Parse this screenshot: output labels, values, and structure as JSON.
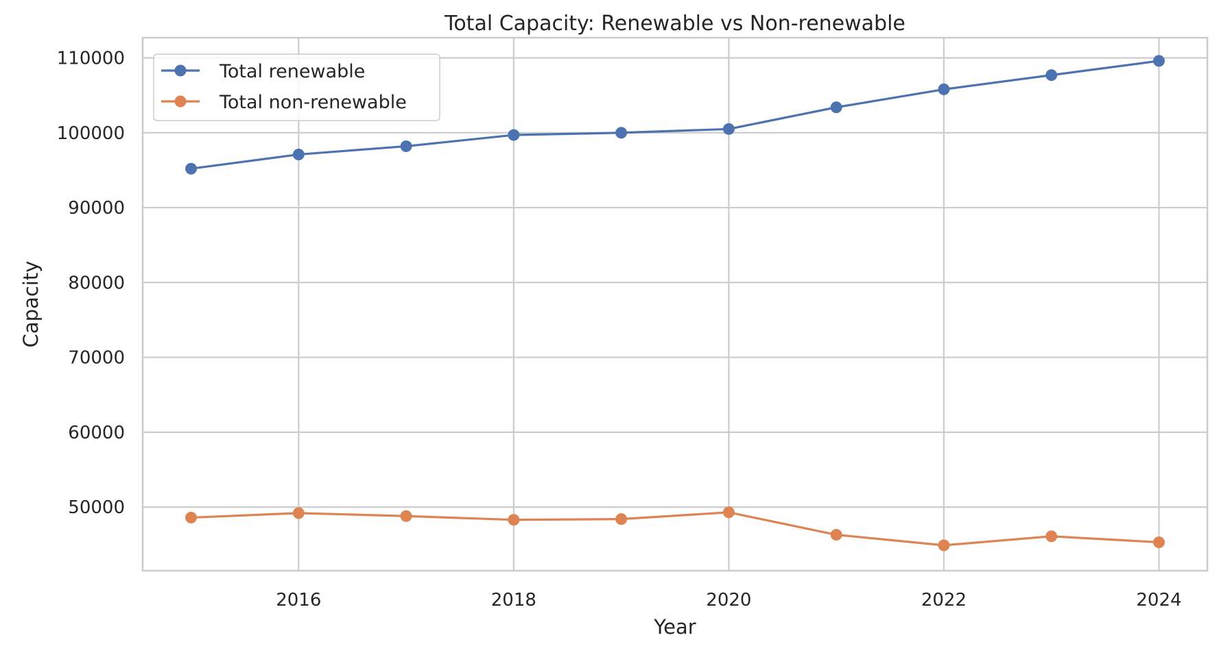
{
  "chart_data": {
    "type": "line",
    "title": "Total Capacity: Renewable vs Non-renewable",
    "xlabel": "Year",
    "ylabel": "Capacity",
    "x": [
      2015,
      2016,
      2017,
      2018,
      2019,
      2020,
      2021,
      2022,
      2023,
      2024
    ],
    "xlim": [
      2014.55,
      2024.45
    ],
    "ylim": [
      41500,
      112700
    ],
    "xticks": [
      2016,
      2018,
      2020,
      2022,
      2024
    ],
    "yticks": [
      50000,
      60000,
      70000,
      80000,
      90000,
      100000,
      110000
    ],
    "grid": true,
    "legend_position": "top-left",
    "series": [
      {
        "name": "Total renewable",
        "color": "#4c72b0",
        "marker": "circle",
        "values": [
          95200,
          97100,
          98200,
          99700,
          100000,
          100500,
          103400,
          105800,
          107700,
          109600
        ]
      },
      {
        "name": "Total non-renewable",
        "color": "#dd8452",
        "marker": "circle",
        "values": [
          48600,
          49200,
          48800,
          48300,
          48400,
          49300,
          46300,
          44900,
          46100,
          45300
        ]
      }
    ]
  }
}
